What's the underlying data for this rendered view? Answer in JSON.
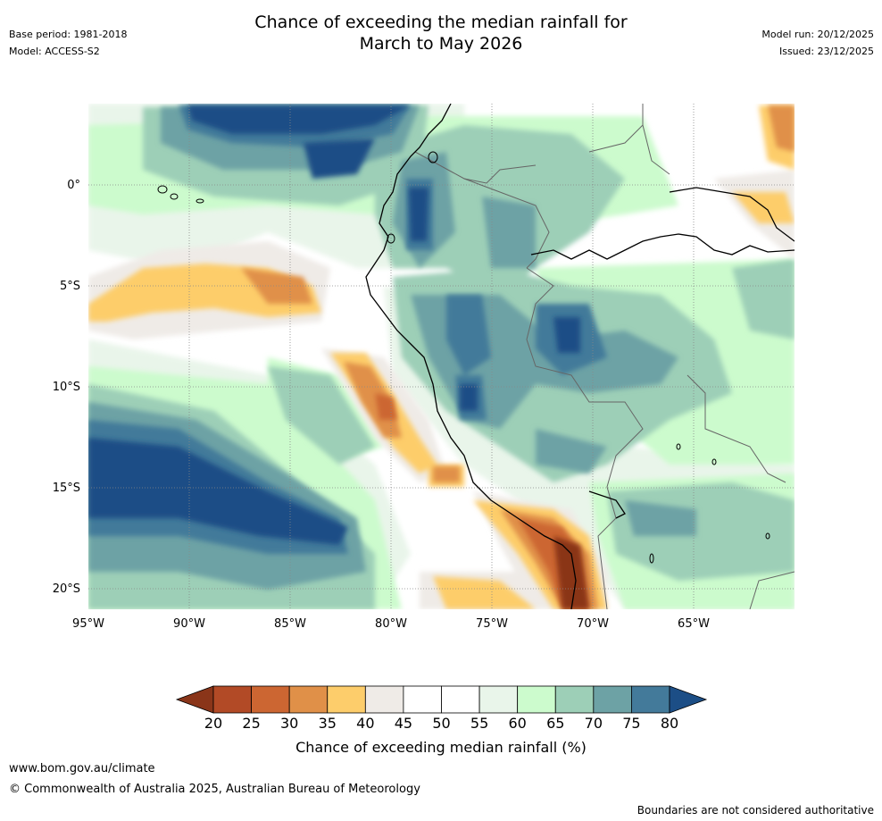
{
  "title": {
    "line1": "Chance of exceeding the median rainfall for",
    "line2": "March to May 2026"
  },
  "meta_left": {
    "base_period": "Base period: 1981-2018",
    "model": "Model: ACCESS-S2"
  },
  "meta_right": {
    "model_run": "Model run: 20/12/2025",
    "issued": "Issued: 23/12/2025"
  },
  "map": {
    "lon_range": [
      -95,
      -60
    ],
    "lat_range": [
      -21,
      4
    ],
    "lat_ticks": [
      "0°",
      "5°S",
      "10°S",
      "15°S",
      "20°S"
    ],
    "lon_ticks": [
      "95°W",
      "90°W",
      "85°W",
      "80°W",
      "75°W",
      "70°W",
      "65°W"
    ],
    "ocean_pattern": "high chance (75-80%) in western Pacific bands, low (20-35%) along southern Peru / northern Chile coast"
  },
  "colorbar": {
    "title": "Chance of exceeding median rainfall (%)",
    "tick_labels": [
      "20",
      "25",
      "30",
      "35",
      "40",
      "45",
      "50",
      "55",
      "60",
      "65",
      "70",
      "75",
      "80"
    ],
    "colors": [
      "#8a3519",
      "#b24a26",
      "#cc6632",
      "#e09048",
      "#fdcd6b",
      "#efebe7",
      "#ffffff",
      "#ffffff",
      "#e9f5ea",
      "#ccfbcd",
      "#9dcfb7",
      "#6da2a5",
      "#437a9a",
      "#1c4e86"
    ]
  },
  "footer": {
    "url": "www.bom.gov.au/climate",
    "copyright": "© Commonwealth of Australia 2025, Australian Bureau of Meteorology",
    "note": "Boundaries are not considered authoritative"
  }
}
